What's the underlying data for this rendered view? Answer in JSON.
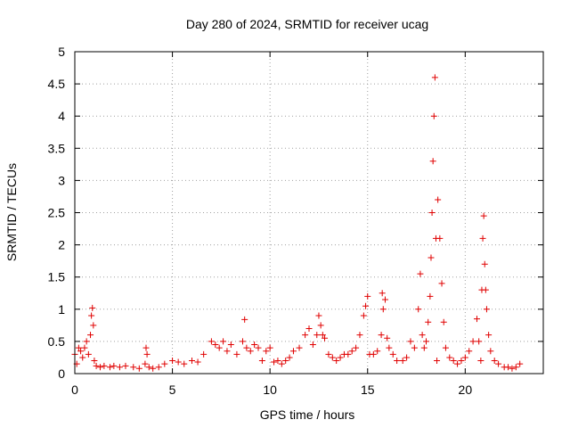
{
  "chart_data": {
    "type": "scatter",
    "title": "Day 280 of 2024, SRMTID for receiver ucag",
    "xlabel": "GPS time / hours",
    "ylabel": "SRMTID / TECUs",
    "xlim": [
      0,
      24
    ],
    "ylim": [
      0,
      5
    ],
    "xticks": [
      0,
      5,
      10,
      15,
      20
    ],
    "xtick_labels": [
      "0",
      "5",
      "10",
      "15",
      "20"
    ],
    "yticks": [
      0,
      0.5,
      1,
      1.5,
      2,
      2.5,
      3,
      3.5,
      4,
      4.5,
      5
    ],
    "ytick_labels": [
      "0",
      "0.5",
      "1",
      "1.5",
      "2",
      "2.5",
      "3",
      "3.5",
      "4",
      "4.5",
      "5"
    ],
    "grid": true,
    "marker": "plus",
    "series": [
      {
        "name": "ucag",
        "color": "#e00000",
        "x": [
          0.0,
          0.1,
          0.2,
          0.3,
          0.4,
          0.5,
          0.6,
          0.7,
          0.8,
          0.85,
          0.9,
          0.95,
          1.0,
          1.1,
          1.3,
          1.5,
          1.8,
          2.0,
          2.3,
          2.6,
          3.0,
          3.3,
          3.6,
          3.65,
          3.7,
          3.8,
          4.0,
          4.3,
          4.6,
          5.0,
          5.3,
          5.6,
          6.0,
          6.3,
          6.6,
          7.0,
          7.2,
          7.4,
          7.6,
          7.8,
          8.0,
          8.3,
          8.6,
          8.7,
          8.8,
          9.0,
          9.2,
          9.4,
          9.6,
          9.8,
          10.0,
          10.2,
          10.4,
          10.6,
          10.8,
          11.0,
          11.2,
          11.5,
          11.8,
          12.0,
          12.2,
          12.4,
          12.5,
          12.6,
          12.7,
          12.8,
          13.0,
          13.2,
          13.4,
          13.6,
          13.8,
          14.0,
          14.2,
          14.4,
          14.6,
          14.8,
          14.9,
          15.0,
          15.1,
          15.3,
          15.5,
          15.7,
          15.75,
          15.8,
          15.9,
          16.0,
          16.1,
          16.3,
          16.5,
          16.8,
          17.0,
          17.2,
          17.4,
          17.6,
          17.7,
          17.8,
          17.9,
          18.0,
          18.1,
          18.2,
          18.25,
          18.3,
          18.35,
          18.4,
          18.45,
          18.5,
          18.55,
          18.6,
          18.7,
          18.8,
          18.9,
          19.0,
          19.2,
          19.4,
          19.6,
          19.8,
          20.0,
          20.2,
          20.4,
          20.6,
          20.7,
          20.8,
          20.85,
          20.9,
          20.95,
          21.0,
          21.05,
          21.1,
          21.2,
          21.3,
          21.5,
          21.7,
          22.0,
          22.2,
          22.4,
          22.6,
          22.8
        ],
        "y": [
          0.3,
          0.15,
          0.4,
          0.35,
          0.25,
          0.4,
          0.5,
          0.3,
          0.6,
          0.9,
          1.02,
          0.75,
          0.2,
          0.12,
          0.1,
          0.12,
          0.1,
          0.12,
          0.1,
          0.12,
          0.1,
          0.08,
          0.15,
          0.4,
          0.3,
          0.1,
          0.08,
          0.1,
          0.15,
          0.2,
          0.18,
          0.15,
          0.2,
          0.18,
          0.3,
          0.5,
          0.45,
          0.4,
          0.5,
          0.35,
          0.45,
          0.3,
          0.5,
          0.84,
          0.4,
          0.35,
          0.45,
          0.4,
          0.2,
          0.35,
          0.4,
          0.18,
          0.2,
          0.15,
          0.2,
          0.25,
          0.35,
          0.4,
          0.6,
          0.7,
          0.45,
          0.6,
          0.9,
          0.75,
          0.6,
          0.55,
          0.3,
          0.25,
          0.2,
          0.25,
          0.3,
          0.3,
          0.35,
          0.4,
          0.6,
          0.9,
          1.05,
          1.2,
          0.3,
          0.3,
          0.35,
          0.6,
          1.25,
          1.0,
          1.15,
          0.55,
          0.4,
          0.3,
          0.2,
          0.2,
          0.25,
          0.5,
          0.4,
          1.0,
          1.55,
          0.6,
          0.4,
          0.5,
          0.8,
          1.2,
          1.8,
          2.5,
          3.3,
          4.0,
          4.6,
          2.1,
          0.2,
          2.7,
          2.1,
          1.4,
          0.8,
          0.4,
          0.25,
          0.2,
          0.15,
          0.2,
          0.25,
          0.35,
          0.5,
          0.85,
          0.5,
          0.2,
          1.3,
          2.1,
          2.45,
          1.7,
          1.3,
          1.0,
          0.6,
          0.35,
          0.2,
          0.15,
          0.1,
          0.1,
          0.08,
          0.1,
          0.15
        ]
      }
    ]
  }
}
